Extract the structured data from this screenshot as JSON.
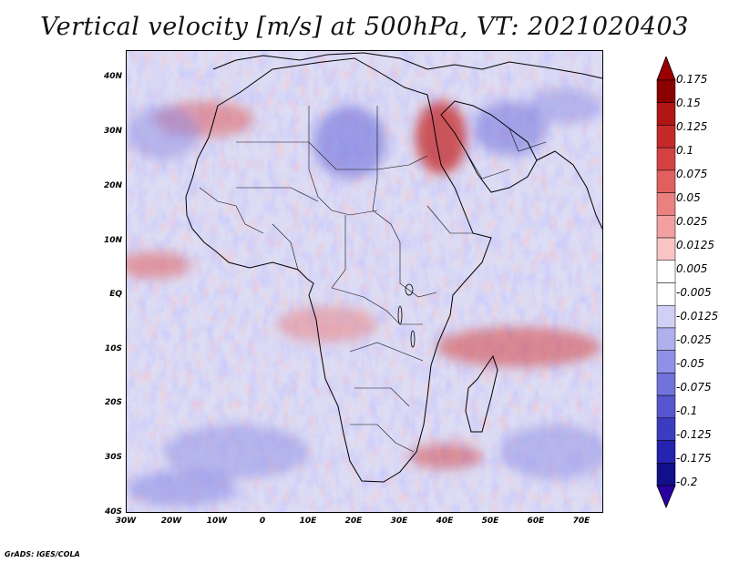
{
  "title": "Vertical velocity [m/s] at 500hPa, VT: 2021020403",
  "map": {
    "lat_labels": [
      "40N",
      "30N",
      "20N",
      "10N",
      "EQ",
      "10S",
      "20S",
      "30S",
      "40S"
    ],
    "lon_labels": [
      "30W",
      "20W",
      "10W",
      "0",
      "10E",
      "20E",
      "30E",
      "40E",
      "50E",
      "60E",
      "70E"
    ],
    "lon_range": [
      -30,
      75
    ],
    "lat_range": [
      -40,
      45
    ]
  },
  "colorbar": {
    "labels": [
      "0.175",
      "0.15",
      "0.125",
      "0.1",
      "0.075",
      "0.05",
      "0.025",
      "0.0125",
      "0.005",
      "-0.005",
      "-0.0125",
      "-0.025",
      "-0.05",
      "-0.075",
      "-0.1",
      "-0.125",
      "-0.175",
      "-0.2"
    ],
    "colors": [
      "#8b0000",
      "#b01616",
      "#c42a2a",
      "#d44242",
      "#e06060",
      "#ea8080",
      "#f2a0a0",
      "#f8c4c4",
      "#ffffff",
      "#ffffff",
      "#d0d0f4",
      "#b0b0ee",
      "#9090e6",
      "#7272dc",
      "#5656d0",
      "#3c3cc2",
      "#2424b0",
      "#10108a"
    ],
    "top_arrow_color": "#9a0000",
    "bottom_arrow_color": "#2a00a0"
  },
  "credit": "GrADS: IGES/COLA"
}
